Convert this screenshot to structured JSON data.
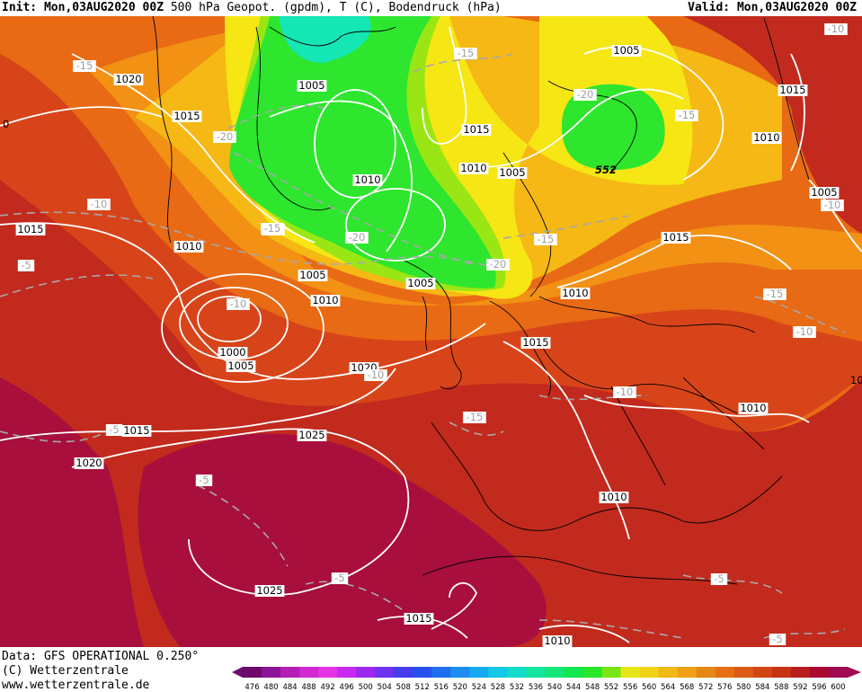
{
  "header": {
    "init_label": "Init:",
    "init_time": "Mon,03AUG2020 00Z",
    "title": "500 hPa Geopot. (gpdm), T (C), Bodendruck (hPa)",
    "valid_label": "Valid:",
    "valid_time": "Mon,03AUG2020 00Z"
  },
  "footer": {
    "data_source": "Data: GFS OPERATIONAL 0.250°",
    "copyright": "(C) Wetterzentrale",
    "website": "www.wetterzentrale.de"
  },
  "legend": {
    "values": [
      "476",
      "480",
      "484",
      "488",
      "492",
      "496",
      "500",
      "504",
      "508",
      "512",
      "516",
      "520",
      "524",
      "528",
      "532",
      "536",
      "540",
      "544",
      "548",
      "552",
      "556",
      "560",
      "564",
      "568",
      "572",
      "576",
      "580",
      "584",
      "588",
      "592",
      "596",
      "600"
    ],
    "colors": [
      "#6e0a6e",
      "#8c1496",
      "#b41eb4",
      "#d228d2",
      "#e632e6",
      "#c828f0",
      "#9b28f0",
      "#6e32f0",
      "#463cf0",
      "#2850f0",
      "#1e6ef0",
      "#1e8cf0",
      "#14aaf0",
      "#14c8e6",
      "#14dcc8",
      "#14e6a0",
      "#14e678",
      "#14e650",
      "#28e628",
      "#78e614",
      "#e6e614",
      "#f0d214",
      "#f0b914",
      "#f0a014",
      "#e68714",
      "#e66e14",
      "#dc5a14",
      "#d24614",
      "#c83214",
      "#b91e1e",
      "#aa0a32",
      "#a00a50"
    ]
  },
  "map": {
    "colors": {
      "dark_red": "#a80f3c",
      "red": "#c22a1e",
      "red_orange": "#d8441a",
      "orange": "#e86a14",
      "light_orange": "#f29114",
      "yellow_orange": "#f5b814",
      "yellow": "#f5e614",
      "light_green": "#9ae614",
      "green": "#2de62d",
      "cyan": "#14e6b4",
      "coastline": "#000000",
      "isobar": "#ffffff",
      "isotherm": "#a8a8a8"
    },
    "isobar_labels": [
      "1020",
      "1015",
      "1005",
      "1015",
      "1010",
      "1010",
      "1005",
      "1005",
      "1015",
      "1015",
      "1010",
      "1005",
      "1005",
      "1015",
      "1010",
      "1010",
      "1005",
      "1010",
      "1000",
      "1005",
      "1020",
      "1015",
      "1015",
      "1025",
      "1020",
      "1010",
      "1010",
      "1025",
      "1015",
      "1010"
    ],
    "isotherm_labels": [
      "-10",
      "-15",
      "-15",
      "-20",
      "-20",
      "-15",
      "-15",
      "-10",
      "-5",
      "-15",
      "-20",
      "-20",
      "-15",
      "-10",
      "-15",
      "-10",
      "-10",
      "-10",
      "-10",
      "-15",
      "-5",
      "-5",
      "-5",
      "-5",
      "-5"
    ],
    "height_label": "552",
    "edge_label": "0",
    "edge_label_2": "10"
  }
}
